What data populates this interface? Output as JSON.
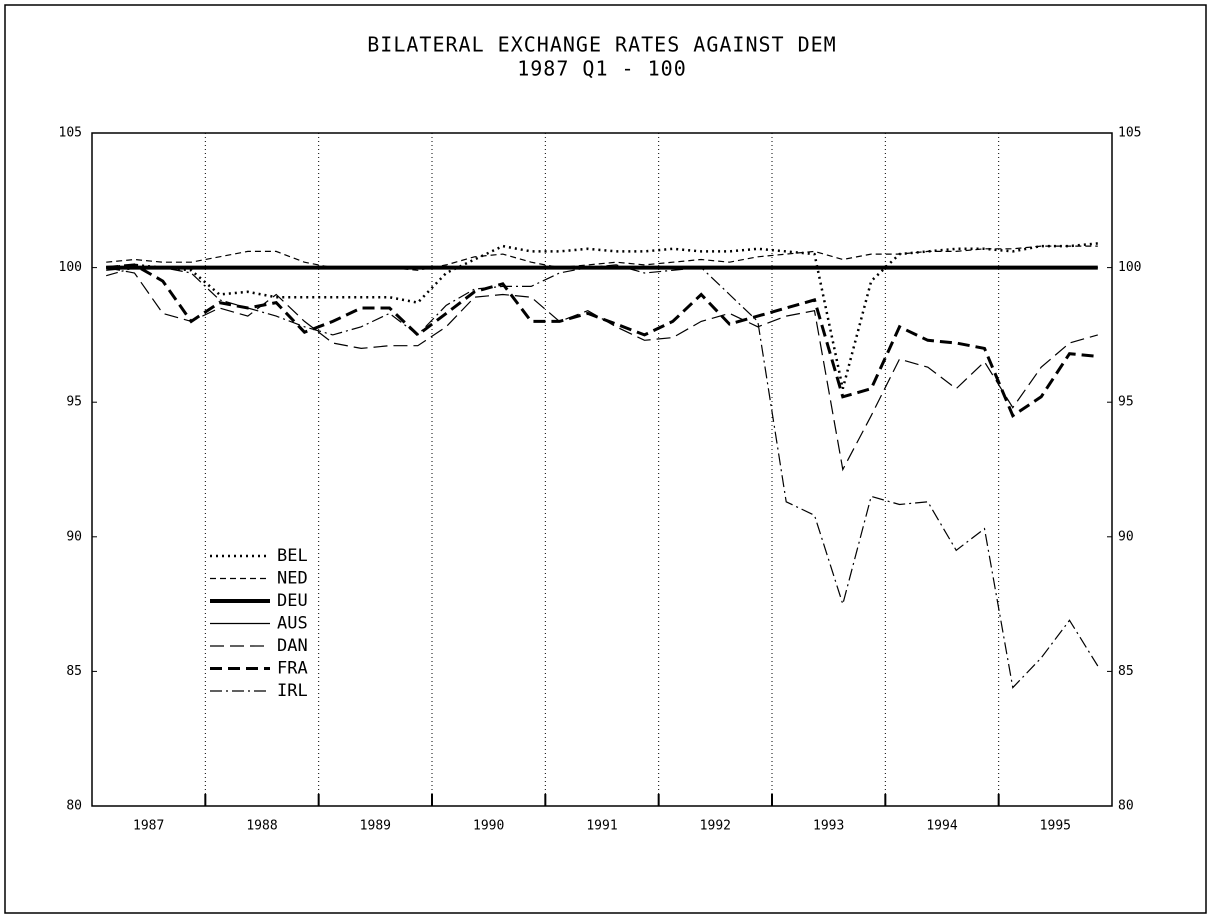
{
  "chart_data": {
    "type": "line",
    "title": "BILATERAL EXCHANGE RATES AGAINST DEM",
    "subtitle": "1987 Q1 - 100",
    "x": [
      1987.125,
      1987.375,
      1987.625,
      1987.875,
      1988.125,
      1988.375,
      1988.625,
      1988.875,
      1989.125,
      1989.375,
      1989.625,
      1989.875,
      1990.125,
      1990.375,
      1990.625,
      1990.875,
      1991.125,
      1991.375,
      1991.625,
      1991.875,
      1992.125,
      1992.375,
      1992.625,
      1992.875,
      1993.125,
      1993.375,
      1993.625,
      1993.875,
      1994.125,
      1994.375,
      1994.625,
      1994.875,
      1995.125,
      1995.375,
      1995.625,
      1995.875
    ],
    "xlim": [
      1987,
      1996
    ],
    "xticks": [
      {
        "value": 1987.5,
        "label": "1987"
      },
      {
        "value": 1988.5,
        "label": "1988"
      },
      {
        "value": 1989.5,
        "label": "1989"
      },
      {
        "value": 1990.5,
        "label": "1990"
      },
      {
        "value": 1991.5,
        "label": "1991"
      },
      {
        "value": 1992.5,
        "label": "1992"
      },
      {
        "value": 1993.5,
        "label": "1993"
      },
      {
        "value": 1994.5,
        "label": "1994"
      },
      {
        "value": 1995.5,
        "label": "1995"
      }
    ],
    "xgrid": [
      1988,
      1989,
      1990,
      1991,
      1992,
      1993,
      1994,
      1995
    ],
    "ylim": [
      80,
      105
    ],
    "yticks": [
      80,
      85,
      90,
      95,
      100,
      105
    ],
    "y2lim": [
      80,
      105
    ],
    "y2ticks": [
      80,
      85,
      90,
      95,
      100,
      105
    ],
    "legend": "lower-left",
    "series": [
      {
        "name": "BEL",
        "color": "#000000",
        "dash": "2 4",
        "width": 2.5,
        "values": [
          100,
          100.1,
          100,
          99.9,
          99.0,
          99.1,
          98.9,
          98.9,
          98.9,
          98.9,
          98.9,
          98.7,
          99.8,
          100.3,
          100.8,
          100.6,
          100.6,
          100.7,
          100.6,
          100.6,
          100.7,
          100.6,
          100.6,
          100.7,
          100.6,
          100.5,
          95.5,
          99.5,
          100.5,
          100.6,
          100.7,
          100.7,
          100.6,
          100.8,
          100.8,
          100.9
        ]
      },
      {
        "name": "NED",
        "color": "#000000",
        "dash": "6 4",
        "width": 1.2,
        "values": [
          100.2,
          100.3,
          100.2,
          100.2,
          100.4,
          100.6,
          100.6,
          100.2,
          100,
          100,
          100,
          99.9,
          100.1,
          100.4,
          100.5,
          100.2,
          100,
          100.1,
          100.2,
          100.1,
          100.2,
          100.3,
          100.2,
          100.4,
          100.5,
          100.6,
          100.3,
          100.5,
          100.5,
          100.6,
          100.6,
          100.7,
          100.7,
          100.8,
          100.8,
          100.8
        ]
      },
      {
        "name": "DEU",
        "color": "#000000",
        "dash": "none",
        "width": 4,
        "values": [
          100,
          100,
          100,
          100,
          100,
          100,
          100,
          100,
          100,
          100,
          100,
          100,
          100,
          100,
          100,
          100,
          100,
          100,
          100,
          100,
          100,
          100,
          100,
          100,
          100,
          100,
          100,
          100,
          100,
          100,
          100,
          100,
          100,
          100,
          100,
          100
        ]
      },
      {
        "name": "AUS",
        "color": "#000000",
        "dash": "none",
        "width": 1.2,
        "values": [
          99.9,
          100,
          100,
          100,
          100,
          100,
          100,
          100,
          100,
          100,
          100,
          100,
          100,
          100,
          100,
          100,
          100,
          100,
          100,
          100,
          100,
          100,
          100,
          100,
          100,
          100,
          100,
          100,
          100,
          100,
          100,
          100,
          100,
          100,
          100,
          100
        ]
      },
      {
        "name": "DAN",
        "color": "#000000",
        "dash": "14 6",
        "width": 1.2,
        "values": [
          100,
          99.8,
          98.3,
          98.0,
          98.5,
          98.2,
          99.0,
          98.0,
          97.2,
          97.0,
          97.1,
          97.1,
          97.8,
          98.9,
          99.0,
          98.9,
          98.0,
          98.4,
          97.8,
          97.3,
          97.4,
          98.0,
          98.3,
          97.8,
          98.2,
          98.4,
          92.5,
          94.5,
          96.6,
          96.3,
          95.5,
          96.5,
          94.8,
          96.3,
          97.2,
          97.5
        ]
      },
      {
        "name": "FRA",
        "color": "#000000",
        "dash": "12 6",
        "width": 3,
        "values": [
          100,
          100.1,
          99.5,
          98.0,
          98.7,
          98.5,
          98.7,
          97.6,
          98.0,
          98.5,
          98.5,
          97.5,
          98.3,
          99.1,
          99.4,
          98.0,
          98.0,
          98.3,
          97.9,
          97.5,
          98.0,
          99.0,
          97.9,
          98.2,
          98.5,
          98.8,
          95.2,
          95.5,
          97.8,
          97.3,
          97.2,
          97.0,
          94.5,
          95.2,
          96.8,
          96.7
        ]
      },
      {
        "name": "IRL",
        "color": "#000000",
        "dash": "12 4 2 4",
        "width": 1.2,
        "values": [
          99.7,
          100,
          100,
          99.8,
          98.8,
          98.5,
          98.2,
          97.8,
          97.5,
          97.8,
          98.3,
          97.5,
          98.6,
          99.2,
          99.3,
          99.3,
          99.8,
          100,
          100.1,
          99.8,
          99.9,
          100,
          99.0,
          98.0,
          91.3,
          90.8,
          87.5,
          91.5,
          91.2,
          91.3,
          89.5,
          90.3,
          84.4,
          85.5,
          86.9,
          85.2
        ]
      }
    ]
  }
}
